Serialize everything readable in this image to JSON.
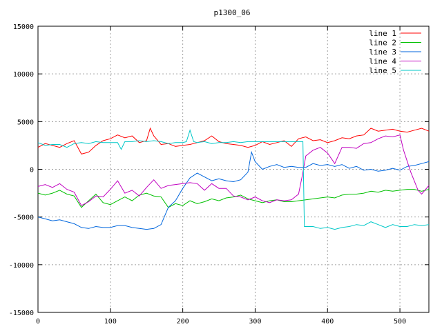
{
  "chart_data": {
    "type": "line",
    "title": "p1300_06",
    "xlabel": "",
    "ylabel": "",
    "xlim": [
      0,
      540
    ],
    "ylim": [
      -15000,
      15000
    ],
    "xticks": [
      0,
      100,
      200,
      300,
      400,
      500
    ],
    "yticks": [
      -15000,
      -10000,
      -5000,
      0,
      5000,
      10000,
      15000
    ],
    "grid": true,
    "legend_position": "top-right",
    "series": [
      {
        "name": "line 1",
        "color": "#ff0000",
        "points": [
          [
            0,
            2300
          ],
          [
            10,
            2700
          ],
          [
            20,
            2500
          ],
          [
            30,
            2300
          ],
          [
            40,
            2700
          ],
          [
            50,
            3000
          ],
          [
            60,
            1600
          ],
          [
            70,
            1800
          ],
          [
            80,
            2500
          ],
          [
            90,
            3000
          ],
          [
            100,
            3200
          ],
          [
            110,
            3600
          ],
          [
            120,
            3300
          ],
          [
            130,
            3500
          ],
          [
            140,
            2800
          ],
          [
            150,
            3000
          ],
          [
            155,
            4300
          ],
          [
            160,
            3500
          ],
          [
            170,
            2600
          ],
          [
            180,
            2700
          ],
          [
            190,
            2400
          ],
          [
            200,
            2500
          ],
          [
            210,
            2600
          ],
          [
            220,
            2800
          ],
          [
            230,
            3000
          ],
          [
            240,
            3500
          ],
          [
            250,
            2900
          ],
          [
            260,
            2700
          ],
          [
            270,
            2600
          ],
          [
            280,
            2500
          ],
          [
            290,
            2300
          ],
          [
            300,
            2500
          ],
          [
            310,
            2900
          ],
          [
            320,
            2600
          ],
          [
            330,
            2800
          ],
          [
            340,
            3000
          ],
          [
            350,
            2400
          ],
          [
            360,
            3200
          ],
          [
            370,
            3400
          ],
          [
            380,
            3000
          ],
          [
            390,
            3100
          ],
          [
            400,
            2800
          ],
          [
            410,
            3000
          ],
          [
            420,
            3300
          ],
          [
            430,
            3200
          ],
          [
            440,
            3500
          ],
          [
            450,
            3600
          ],
          [
            460,
            4300
          ],
          [
            470,
            4000
          ],
          [
            480,
            4100
          ],
          [
            490,
            4200
          ],
          [
            500,
            4000
          ],
          [
            510,
            3900
          ],
          [
            520,
            4100
          ],
          [
            530,
            4300
          ],
          [
            540,
            4000
          ]
        ]
      },
      {
        "name": "line 2",
        "color": "#00c000",
        "points": [
          [
            0,
            -2500
          ],
          [
            10,
            -2700
          ],
          [
            20,
            -2500
          ],
          [
            30,
            -2200
          ],
          [
            40,
            -2600
          ],
          [
            50,
            -2800
          ],
          [
            60,
            -4000
          ],
          [
            70,
            -3300
          ],
          [
            80,
            -2600
          ],
          [
            90,
            -3500
          ],
          [
            100,
            -3700
          ],
          [
            110,
            -3300
          ],
          [
            120,
            -2900
          ],
          [
            130,
            -3300
          ],
          [
            140,
            -2700
          ],
          [
            150,
            -2500
          ],
          [
            160,
            -2800
          ],
          [
            170,
            -2900
          ],
          [
            180,
            -4000
          ],
          [
            190,
            -3600
          ],
          [
            200,
            -3800
          ],
          [
            210,
            -3300
          ],
          [
            220,
            -3600
          ],
          [
            230,
            -3400
          ],
          [
            240,
            -3100
          ],
          [
            250,
            -3300
          ],
          [
            260,
            -3000
          ],
          [
            270,
            -2900
          ],
          [
            280,
            -2700
          ],
          [
            290,
            -3100
          ],
          [
            300,
            -3300
          ],
          [
            310,
            -3500
          ],
          [
            320,
            -3300
          ],
          [
            330,
            -3200
          ],
          [
            340,
            -3400
          ],
          [
            350,
            -3400
          ],
          [
            360,
            -3300
          ],
          [
            370,
            -3200
          ],
          [
            380,
            -3100
          ],
          [
            390,
            -3000
          ],
          [
            400,
            -2900
          ],
          [
            410,
            -3000
          ],
          [
            420,
            -2700
          ],
          [
            430,
            -2600
          ],
          [
            440,
            -2600
          ],
          [
            450,
            -2500
          ],
          [
            460,
            -2300
          ],
          [
            470,
            -2400
          ],
          [
            480,
            -2200
          ],
          [
            490,
            -2300
          ],
          [
            500,
            -2200
          ],
          [
            510,
            -2100
          ],
          [
            520,
            -2100
          ],
          [
            530,
            -2300
          ],
          [
            540,
            -2100
          ]
        ]
      },
      {
        "name": "line 3",
        "color": "#0066dd",
        "points": [
          [
            0,
            -5000
          ],
          [
            10,
            -5200
          ],
          [
            20,
            -5400
          ],
          [
            30,
            -5300
          ],
          [
            40,
            -5500
          ],
          [
            50,
            -5700
          ],
          [
            60,
            -6100
          ],
          [
            70,
            -6200
          ],
          [
            80,
            -6000
          ],
          [
            90,
            -6100
          ],
          [
            100,
            -6100
          ],
          [
            110,
            -5900
          ],
          [
            120,
            -5900
          ],
          [
            130,
            -6100
          ],
          [
            140,
            -6200
          ],
          [
            150,
            -6300
          ],
          [
            160,
            -6200
          ],
          [
            170,
            -5800
          ],
          [
            180,
            -4000
          ],
          [
            190,
            -3300
          ],
          [
            200,
            -2000
          ],
          [
            210,
            -900
          ],
          [
            220,
            -400
          ],
          [
            230,
            -800
          ],
          [
            240,
            -1200
          ],
          [
            250,
            -1000
          ],
          [
            260,
            -1200
          ],
          [
            270,
            -1300
          ],
          [
            280,
            -1100
          ],
          [
            290,
            -300
          ],
          [
            295,
            1800
          ],
          [
            300,
            800
          ],
          [
            310,
            0
          ],
          [
            320,
            300
          ],
          [
            330,
            500
          ],
          [
            340,
            200
          ],
          [
            350,
            300
          ],
          [
            360,
            200
          ],
          [
            370,
            200
          ],
          [
            380,
            600
          ],
          [
            390,
            400
          ],
          [
            400,
            500
          ],
          [
            410,
            300
          ],
          [
            420,
            500
          ],
          [
            430,
            100
          ],
          [
            440,
            300
          ],
          [
            450,
            -100
          ],
          [
            460,
            0
          ],
          [
            470,
            -200
          ],
          [
            480,
            -100
          ],
          [
            490,
            100
          ],
          [
            500,
            -100
          ],
          [
            510,
            300
          ],
          [
            520,
            400
          ],
          [
            530,
            600
          ],
          [
            540,
            800
          ]
        ]
      },
      {
        "name": "line 4",
        "color": "#c000c0",
        "points": [
          [
            0,
            -1800
          ],
          [
            10,
            -1600
          ],
          [
            20,
            -1900
          ],
          [
            30,
            -1500
          ],
          [
            40,
            -2100
          ],
          [
            50,
            -2400
          ],
          [
            60,
            -3800
          ],
          [
            70,
            -3400
          ],
          [
            80,
            -2800
          ],
          [
            90,
            -2900
          ],
          [
            100,
            -2100
          ],
          [
            110,
            -1200
          ],
          [
            120,
            -2500
          ],
          [
            130,
            -2200
          ],
          [
            140,
            -2800
          ],
          [
            150,
            -1900
          ],
          [
            160,
            -1100
          ],
          [
            170,
            -2000
          ],
          [
            180,
            -1700
          ],
          [
            190,
            -1600
          ],
          [
            200,
            -1500
          ],
          [
            210,
            -1400
          ],
          [
            220,
            -1500
          ],
          [
            230,
            -2200
          ],
          [
            240,
            -1500
          ],
          [
            250,
            -2000
          ],
          [
            260,
            -2000
          ],
          [
            270,
            -2800
          ],
          [
            280,
            -2900
          ],
          [
            290,
            -3200
          ],
          [
            300,
            -2900
          ],
          [
            310,
            -3300
          ],
          [
            320,
            -3500
          ],
          [
            330,
            -3200
          ],
          [
            340,
            -3300
          ],
          [
            350,
            -3200
          ],
          [
            360,
            -2600
          ],
          [
            365,
            -700
          ],
          [
            370,
            1400
          ],
          [
            380,
            2000
          ],
          [
            390,
            2300
          ],
          [
            400,
            1700
          ],
          [
            410,
            600
          ],
          [
            420,
            2300
          ],
          [
            430,
            2300
          ],
          [
            440,
            2200
          ],
          [
            450,
            2700
          ],
          [
            460,
            2800
          ],
          [
            470,
            3200
          ],
          [
            480,
            3500
          ],
          [
            490,
            3400
          ],
          [
            500,
            3600
          ],
          [
            505,
            2000
          ],
          [
            515,
            -300
          ],
          [
            525,
            -2200
          ],
          [
            530,
            -2600
          ],
          [
            540,
            -1700
          ]
        ]
      },
      {
        "name": "line 5",
        "color": "#00c8c8",
        "points": [
          [
            0,
            2800
          ],
          [
            10,
            2500
          ],
          [
            20,
            2600
          ],
          [
            30,
            2600
          ],
          [
            40,
            2300
          ],
          [
            50,
            2700
          ],
          [
            60,
            2800
          ],
          [
            70,
            2700
          ],
          [
            80,
            2900
          ],
          [
            90,
            2800
          ],
          [
            100,
            2800
          ],
          [
            110,
            2800
          ],
          [
            115,
            2100
          ],
          [
            120,
            2900
          ],
          [
            130,
            2900
          ],
          [
            140,
            3000
          ],
          [
            150,
            2900
          ],
          [
            160,
            3000
          ],
          [
            170,
            2900
          ],
          [
            180,
            2700
          ],
          [
            190,
            2800
          ],
          [
            200,
            2800
          ],
          [
            205,
            2900
          ],
          [
            210,
            4100
          ],
          [
            215,
            2900
          ],
          [
            220,
            2800
          ],
          [
            230,
            2900
          ],
          [
            240,
            2700
          ],
          [
            250,
            2800
          ],
          [
            260,
            2800
          ],
          [
            270,
            2900
          ],
          [
            280,
            2800
          ],
          [
            290,
            2900
          ],
          [
            300,
            2900
          ],
          [
            310,
            2900
          ],
          [
            320,
            2900
          ],
          [
            330,
            2900
          ],
          [
            340,
            2900
          ],
          [
            350,
            2900
          ],
          [
            360,
            2900
          ],
          [
            366,
            2900
          ],
          [
            368,
            -6000
          ],
          [
            380,
            -6000
          ],
          [
            390,
            -6200
          ],
          [
            400,
            -6100
          ],
          [
            410,
            -6300
          ],
          [
            420,
            -6100
          ],
          [
            430,
            -6000
          ],
          [
            440,
            -5800
          ],
          [
            450,
            -5900
          ],
          [
            460,
            -5500
          ],
          [
            470,
            -5800
          ],
          [
            480,
            -6100
          ],
          [
            490,
            -5800
          ],
          [
            500,
            -6000
          ],
          [
            510,
            -6000
          ],
          [
            520,
            -5800
          ],
          [
            530,
            -5900
          ],
          [
            540,
            -5800
          ]
        ]
      }
    ]
  }
}
